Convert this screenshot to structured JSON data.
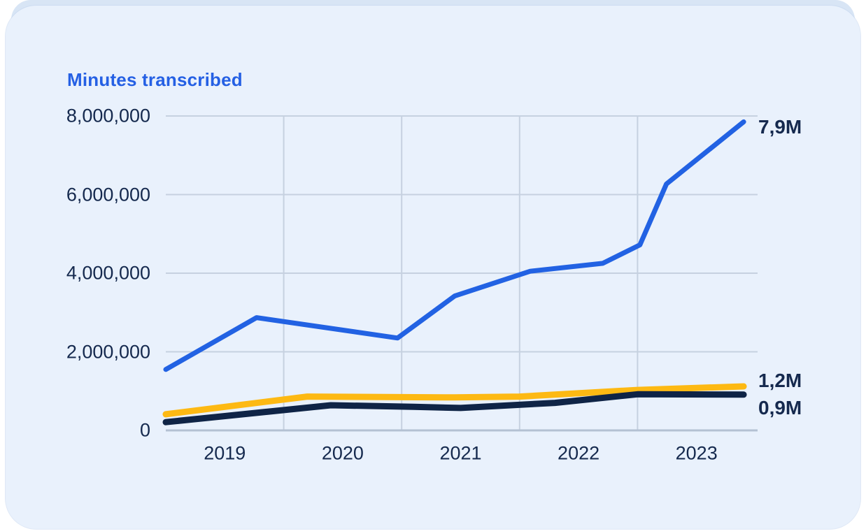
{
  "chart": {
    "title": "Minutes transcribed"
  },
  "colors": {
    "title": "#2560e4",
    "card_background": "#e9f1fc",
    "backdrop": "#d8e5f5",
    "gridline": "#c6d1e0",
    "axis_line": "#b4c1d3",
    "tick_text": "#15294e"
  },
  "chart_data": {
    "type": "line",
    "title": "Minutes transcribed",
    "grid": true,
    "legend": "none",
    "x_axis": {
      "tick_labels": [
        "2019",
        "2020",
        "2021",
        "2022",
        "2023"
      ],
      "tick_positions": [
        0.1,
        0.3,
        0.5,
        0.7,
        0.9
      ],
      "gridline_positions": [
        0.2,
        0.4,
        0.6,
        0.8
      ],
      "note": "x positions are fractions of the plot width spanning years 2019-2023"
    },
    "y_axis": {
      "min": 0,
      "max": 8000000,
      "ticks": [
        {
          "value": 8000000,
          "label": "8,000,000"
        },
        {
          "value": 6000000,
          "label": "6,000,000"
        },
        {
          "value": 4000000,
          "label": "4,000,000"
        },
        {
          "value": 2000000,
          "label": "2,000,000"
        },
        {
          "value": 0,
          "label": "0"
        }
      ]
    },
    "series": [
      {
        "id": "minutes-primary",
        "color": "#2262e3",
        "stroke_width": 7,
        "end_label": "7,9M",
        "points": [
          {
            "x": 0.0,
            "y": 1550000
          },
          {
            "x": 0.154,
            "y": 2870000
          },
          {
            "x": 0.393,
            "y": 2350000
          },
          {
            "x": 0.49,
            "y": 3420000
          },
          {
            "x": 0.618,
            "y": 4050000
          },
          {
            "x": 0.741,
            "y": 4250000
          },
          {
            "x": 0.804,
            "y": 4720000
          },
          {
            "x": 0.849,
            "y": 6270000
          },
          {
            "x": 0.98,
            "y": 7850000
          }
        ]
      },
      {
        "id": "minutes-secondary",
        "color": "#fdb913",
        "stroke_width": 9,
        "end_label": "1,2M",
        "points": [
          {
            "x": 0.0,
            "y": 410000
          },
          {
            "x": 0.24,
            "y": 860000
          },
          {
            "x": 0.49,
            "y": 840000
          },
          {
            "x": 0.6,
            "y": 860000
          },
          {
            "x": 0.8,
            "y": 1030000
          },
          {
            "x": 0.98,
            "y": 1120000
          }
        ]
      },
      {
        "id": "minutes-tertiary",
        "color": "#0f2446",
        "stroke_width": 9,
        "end_label": "0,9M",
        "points": [
          {
            "x": 0.0,
            "y": 210000
          },
          {
            "x": 0.28,
            "y": 640000
          },
          {
            "x": 0.42,
            "y": 600000
          },
          {
            "x": 0.5,
            "y": 570000
          },
          {
            "x": 0.66,
            "y": 700000
          },
          {
            "x": 0.8,
            "y": 920000
          },
          {
            "x": 0.98,
            "y": 910000
          }
        ]
      }
    ]
  }
}
